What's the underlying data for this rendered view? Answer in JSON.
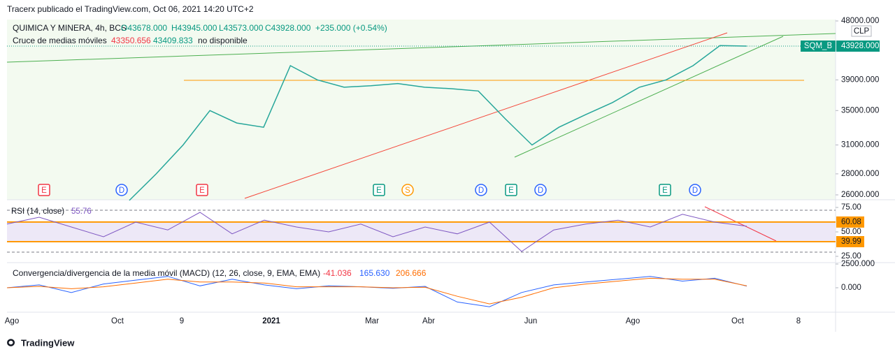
{
  "header": {
    "publisher": "Tracerx publicado el TradingView.com, Oct 06, 2021 14:20 UTC+2"
  },
  "main_pane": {
    "symbol": "QUIMICA Y MINERA, 4h, BCS",
    "open": "O43678.000",
    "high": "H43945.000",
    "low": "L43573.000",
    "close": "C43928.000",
    "change": "+235.000 (+0.54%)",
    "ma_title": "Cruce de medias móviles",
    "ma_fast": "43350.656",
    "ma_slow": "43409.833",
    "ma_status": "no disponible",
    "currency": "CLP",
    "symbol_badge": "SQM_B",
    "price_badge": {
      "value": 43928,
      "label": "43928.000"
    },
    "ticks": [
      {
        "value": 48000,
        "label": "48000.000"
      },
      {
        "value": 39000,
        "label": "39000.000"
      },
      {
        "value": 35000,
        "label": "35000.000"
      },
      {
        "value": 31000,
        "label": "31000.000"
      },
      {
        "value": 28000,
        "label": "28000.000"
      },
      {
        "value": 26000,
        "label": "26000.000"
      }
    ],
    "price_path": [
      25500,
      28000,
      31000,
      35000,
      33500,
      33000,
      41000,
      39000,
      38000,
      38200,
      38500,
      38000,
      37800,
      37500,
      34000,
      31000,
      33000,
      34500,
      36000,
      38000,
      39000,
      41000,
      44000,
      43928
    ],
    "events": [
      "E",
      "D",
      "E",
      "E",
      "S",
      "D",
      "E",
      "D",
      "E",
      "D"
    ]
  },
  "rsi_pane": {
    "title": "RSI (14, close)",
    "value": "55.76",
    "ticks": [
      {
        "value": 75,
        "label": "75.00"
      },
      {
        "value": 50,
        "label": "50.00"
      },
      {
        "value": 25,
        "label": "25.00"
      }
    ],
    "bands": [
      {
        "value": 60.08,
        "label": "60.08"
      },
      {
        "value": 39.99,
        "label": "39.99"
      }
    ],
    "rsi_path": [
      58,
      65,
      55,
      45,
      60,
      52,
      70,
      48,
      62,
      55,
      50,
      58,
      45,
      55,
      48,
      60,
      30,
      52,
      58,
      62,
      55,
      68,
      60,
      55.76
    ]
  },
  "macd_pane": {
    "title": "Convergencia/divergencia de la media móvil (MACD) (12, 26, close, 9, EMA, EMA)",
    "histogram": "-41.036",
    "macd": "165.630",
    "signal": "206.666",
    "ticks": [
      {
        "value": 2500,
        "label": "2500.000"
      },
      {
        "value": 0,
        "label": "0.000"
      }
    ],
    "macd_path": [
      0,
      300,
      -500,
      400,
      800,
      1200,
      200,
      900,
      300,
      -100,
      200,
      100,
      -50,
      150,
      -1500,
      -2000,
      -500,
      300,
      600,
      900,
      1200,
      700,
      1000,
      165.63
    ],
    "signal_path": [
      0,
      150,
      -100,
      100,
      500,
      900,
      600,
      600,
      500,
      100,
      100,
      100,
      0,
      50,
      -900,
      -1700,
      -1000,
      0,
      400,
      700,
      1000,
      900,
      900,
      206.666
    ]
  },
  "time_axis": [
    "Ago",
    "Oct",
    "9",
    "2021",
    "Mar",
    "Abr",
    "Jun",
    "Ago",
    "Oct",
    "8"
  ],
  "footer": {
    "brand": "TradingView"
  }
}
